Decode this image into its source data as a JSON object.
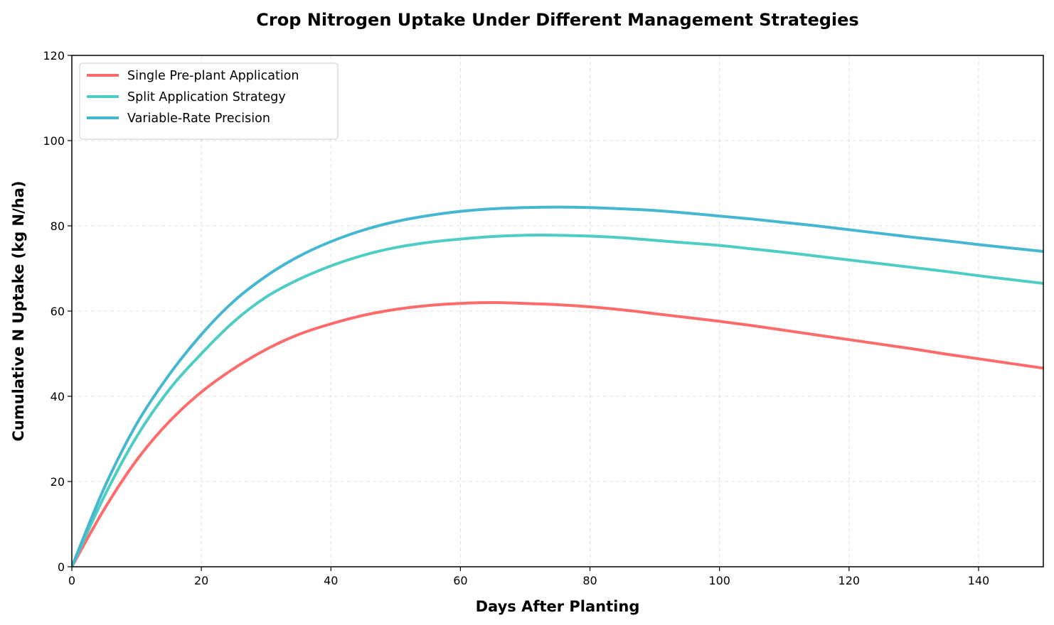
{
  "chart_data": {
    "type": "line",
    "title": "Crop Nitrogen Uptake Under Different Management Strategies",
    "xlabel": "Days After Planting",
    "ylabel": "Cumulative N Uptake (kg N/ha)",
    "xlim": [
      0,
      150
    ],
    "ylim": [
      0,
      120
    ],
    "xticks": [
      "0",
      "20",
      "40",
      "60",
      "80",
      "100",
      "120",
      "140"
    ],
    "yticks": [
      "0",
      "20",
      "40",
      "60",
      "80",
      "100",
      "120"
    ],
    "grid": true,
    "legend_position": "top-left",
    "x": [
      0,
      5,
      10,
      15,
      20,
      25,
      30,
      35,
      40,
      45,
      50,
      55,
      60,
      65,
      70,
      75,
      80,
      85,
      90,
      95,
      100,
      105,
      110,
      115,
      120,
      125,
      130,
      135,
      140,
      145,
      150
    ],
    "series": [
      {
        "name": "Single Pre-plant Application",
        "color": "#FF6B6B",
        "values": [
          0,
          13.5,
          25.0,
          34.0,
          41.0,
          46.5,
          51.0,
          54.5,
          57.0,
          59.0,
          60.4,
          61.3,
          61.8,
          62.0,
          61.8,
          61.5,
          61.0,
          60.3,
          59.4,
          58.5,
          57.6,
          56.6,
          55.5,
          54.4,
          53.3,
          52.2,
          51.1,
          49.9,
          48.8,
          47.7,
          46.6
        ]
      },
      {
        "name": "Split Application Strategy",
        "color": "#4ECDC4",
        "values": [
          0,
          16.5,
          30.5,
          41.5,
          50.0,
          57.5,
          63.3,
          67.4,
          70.6,
          73.1,
          74.9,
          76.1,
          76.9,
          77.5,
          77.8,
          77.8,
          77.6,
          77.2,
          76.6,
          76.0,
          75.4,
          74.6,
          73.8,
          72.9,
          72.0,
          71.1,
          70.2,
          69.3,
          68.3,
          67.4,
          66.5
        ]
      },
      {
        "name": "Variable-Rate Precision",
        "color": "#45B7D1",
        "values": [
          0,
          18.5,
          33.5,
          45.0,
          54.5,
          62.3,
          68.2,
          72.8,
          76.3,
          79.0,
          81.0,
          82.4,
          83.4,
          84.0,
          84.3,
          84.4,
          84.3,
          84.0,
          83.6,
          83.0,
          82.3,
          81.6,
          80.8,
          80.0,
          79.1,
          78.2,
          77.3,
          76.5,
          75.6,
          74.8,
          74.0
        ]
      }
    ]
  }
}
